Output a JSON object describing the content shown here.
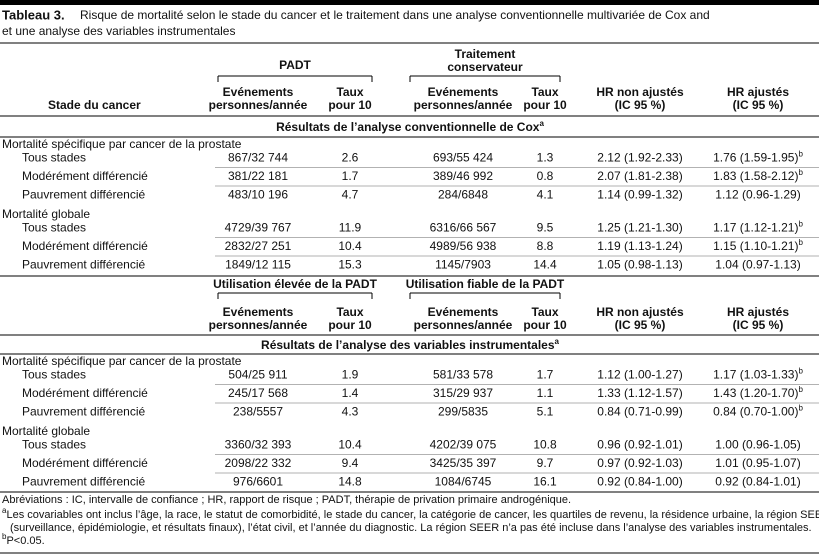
{
  "title_label": "Tableau 3.",
  "title_lines": [
    "Risque de mortalité selon le stade du cancer et le traitement dans une analyse conventionnelle multivariée de Cox and",
    "et une analyse des variables instrumentales"
  ],
  "stage_header": "Stade du cancer",
  "sections": [
    {
      "groups": [
        [
          "PADT"
        ],
        [
          "Traitement",
          "conservateur"
        ]
      ],
      "columns": [
        [
          "Evénements",
          "personnes/année"
        ],
        [
          "Taux",
          "pour 10"
        ],
        [
          "Evénements",
          "personnes/année"
        ],
        [
          "Taux",
          "pour 10"
        ],
        [
          "HR non ajustés",
          "(IC 95 %)"
        ],
        [
          "HR ajustés",
          "(IC 95 %)"
        ]
      ],
      "header": "Résultats de l’analyse conventionnelle de Cox",
      "header_sup": "a",
      "blocks": [
        {
          "label": "Mortalité spécifique par cancer de la prostate",
          "rows": [
            {
              "stage": "Tous stades",
              "values": [
                "867/32 744",
                "2.6",
                "693/55 424",
                "1.3",
                "2.12 (1.92-2.33)",
                "1.76 (1.59-1.95)"
              ],
              "sup": "b"
            },
            {
              "stage": "Modérément différencié",
              "values": [
                "381/22 181",
                "1.7",
                "389/46 992",
                "0.8",
                "2.07 (1.81-2.38)",
                "1.83 (1.58-2.12)"
              ],
              "sup": "b"
            },
            {
              "stage": "Pauvrement différencié",
              "values": [
                "483/10 196",
                "4.7",
                "284/6848",
                "4.1",
                "1.14 (0.99-1.32)",
                "1.12 (0.96-1.29)"
              ]
            }
          ]
        },
        {
          "label": "Mortalité globale",
          "rows": [
            {
              "stage": "Tous stades",
              "values": [
                "4729/39 767",
                "11.9",
                "6316/66 567",
                "9.5",
                "1.25 (1.21-1.30)",
                "1.17 (1.12-1.21)"
              ],
              "sup": "b"
            },
            {
              "stage": "Modérément différencié",
              "values": [
                "2832/27 251",
                "10.4",
                "4989/56 938",
                "8.8",
                "1.19 (1.13-1.24)",
                "1.15 (1.10-1.21)"
              ],
              "sup": "b"
            },
            {
              "stage": "Pauvrement différencié",
              "values": [
                "1849/12 115",
                "15.3",
                "1145/7903",
                "14.4",
                "1.05 (0.98-1.13)",
                "1.04 (0.97-1.13)"
              ]
            }
          ]
        }
      ]
    },
    {
      "groups": [
        [
          "Utilisation élevée de la PADT"
        ],
        [
          "Utilisation fiable de la PADT"
        ]
      ],
      "columns": [
        [
          "Evénements",
          "personnes/année"
        ],
        [
          "Taux",
          "pour 10"
        ],
        [
          "Evénements",
          "personnes/année"
        ],
        [
          "Taux",
          "pour 10"
        ],
        [
          "HR non ajustés",
          "(IC 95 %)"
        ],
        [
          "HR ajustés",
          "(IC 95 %)"
        ]
      ],
      "header": "Résultats de l’analyse des variables instrumentales",
      "header_sup": "a",
      "blocks": [
        {
          "label": "Mortalité spécifique par cancer de la prostate",
          "rows": [
            {
              "stage": "Tous stades",
              "values": [
                "504/25 911",
                "1.9",
                "581/33 578",
                "1.7",
                "1.12 (1.00-1.27)",
                "1.17 (1.03-1.33)"
              ],
              "sup": "b"
            },
            {
              "stage": "Modérément différencié",
              "values": [
                "245/17 568",
                "1.4",
                "315/29 937",
                "1.1",
                "1.33 (1.12-1.57)",
                "1.43 (1.20-1.70)"
              ],
              "sup": "b"
            },
            {
              "stage": "Pauvrement différencié",
              "values": [
                "238/5557",
                "4.3",
                "299/5835",
                "5.1",
                "0.84 (0.71-0.99)",
                "0.84 (0.70-1.00)"
              ],
              "sup": "b"
            }
          ]
        },
        {
          "label": "Mortalité globale",
          "rows": [
            {
              "stage": "Tous stades",
              "values": [
                "3360/32 393",
                "10.4",
                "4202/39 075",
                "10.8",
                "0.96 (0.92-1.01)",
                "1.00 (0.96-1.05)"
              ]
            },
            {
              "stage": "Modérément différencié",
              "values": [
                "2098/22 332",
                "9.4",
                "3425/35 397",
                "9.7",
                "0.97 (0.92-1.03)",
                "1.01 (0.95-1.07)"
              ]
            },
            {
              "stage": "Pauvrement différencié",
              "values": [
                "976/6601",
                "14.8",
                "1084/6745",
                "16.1",
                "0.92 (0.84-1.00)",
                "0.92 (0.84-1.01)"
              ]
            }
          ]
        }
      ]
    }
  ],
  "footnotes": {
    "abbreviations": "Abréviations : IC, intervalle de confiance ; HR, rapport de risque ; PADT, thérapie de privation primaire androgénique.",
    "a_mark": "a",
    "a_lines": [
      "Les covariables ont inclus l’âge, la race, le statut de comorbidité, le stade du cancer, la catégorie de cancer, les quartiles de revenu, la résidence urbaine, la région SEER",
      "(surveillance, épidémiologie, et résultats finaux), l’état civil, et l’année du diagnostic. La région SEER n’a pas été incluse dans l’analyse des variables instrumentales."
    ],
    "b_mark": "b",
    "b_text": "P<0.05."
  }
}
